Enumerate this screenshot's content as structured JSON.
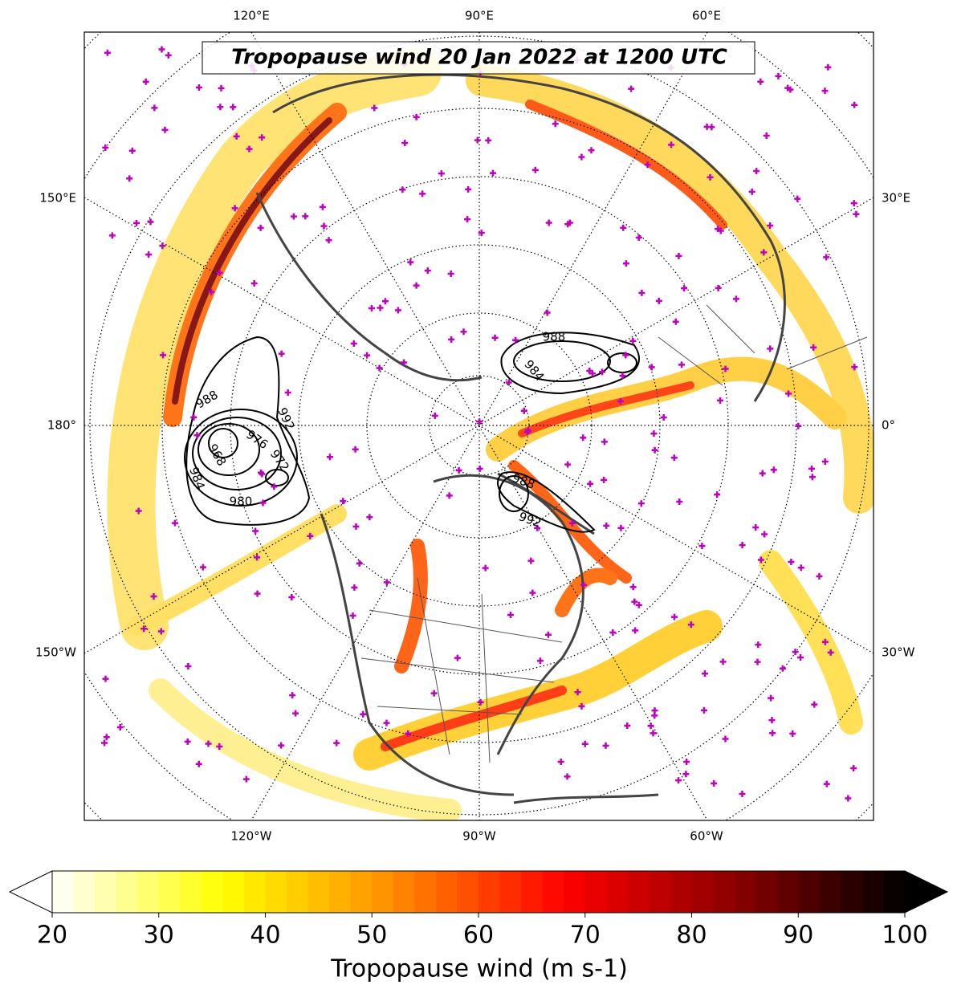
{
  "map": {
    "title": "Tropopause wind 20 Jan 2022 at 1200 UTC",
    "longitude_labels": {
      "top": [
        "120°E",
        "90°E",
        "60°E"
      ],
      "bottom": [
        "120°W",
        "90°W",
        "60°W"
      ],
      "left": [
        "150°E",
        "180°",
        "150°W"
      ],
      "right": [
        "30°E",
        "0°",
        "30°W"
      ]
    },
    "contour_labels": [
      "988",
      "992",
      "976",
      "972",
      "968",
      "984",
      "980",
      "988",
      "984",
      "988",
      "992"
    ],
    "colorbar": {
      "label": "Tropopause wind (m s-1)",
      "range": [
        20,
        100
      ],
      "ticks": [
        20,
        30,
        40,
        50,
        60,
        70,
        80,
        90,
        100
      ],
      "colors": [
        "#ffffff",
        "#ffff00",
        "#ff8c00",
        "#ff0000",
        "#8b0000",
        "#000000"
      ]
    }
  }
}
